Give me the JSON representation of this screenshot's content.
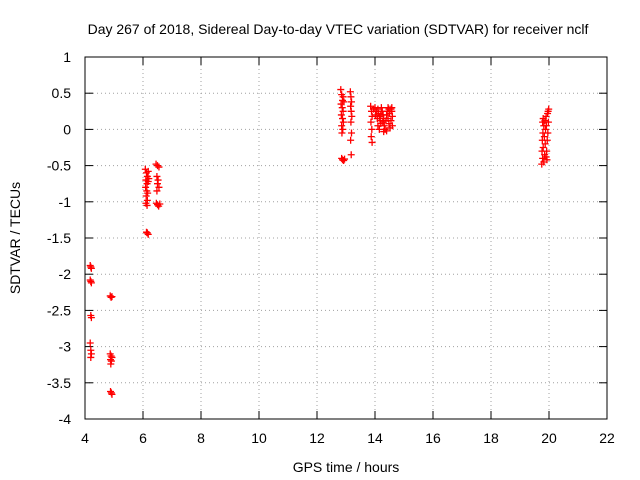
{
  "chart_data": {
    "type": "scatter",
    "title": "Day 267 of 2018, Sidereal Day-to-day VTEC variation (SDTVAR) for receiver nclf",
    "xlabel": "GPS time / hours",
    "ylabel": "SDTVAR / TECUs",
    "xlim": [
      4,
      22
    ],
    "ylim": [
      -4,
      1
    ],
    "xticks": [
      4,
      6,
      8,
      10,
      12,
      14,
      16,
      18,
      20,
      22
    ],
    "yticks": [
      -4,
      -3.5,
      -3,
      -2.5,
      -2,
      -1.5,
      -1,
      -0.5,
      0,
      0.5,
      1
    ],
    "xtick_labels": [
      "4",
      "6",
      "8",
      "10",
      "12",
      "14",
      "16",
      "18",
      "20",
      "22"
    ],
    "ytick_labels": [
      "-4",
      "-3.5",
      "-3",
      "-2.5",
      "-2",
      "-1.5",
      "-1",
      "-0.5",
      "0",
      "0.5",
      "1"
    ],
    "grid": true,
    "grid_style": "dotted",
    "marker": "plus",
    "colors": {
      "series": "#ff0000",
      "axes": "#000000",
      "grid": "#a0a0a0",
      "background": "#ffffff"
    },
    "series": [
      {
        "name": "SDTVAR",
        "points": [
          [
            4.18,
            -1.88
          ],
          [
            4.2,
            -1.9
          ],
          [
            4.22,
            -1.92
          ],
          [
            4.18,
            -2.08
          ],
          [
            4.2,
            -2.1
          ],
          [
            4.22,
            -2.12
          ],
          [
            4.2,
            -2.57
          ],
          [
            4.22,
            -2.6
          ],
          [
            4.18,
            -2.95
          ],
          [
            4.2,
            -3.05
          ],
          [
            4.22,
            -3.1
          ],
          [
            4.2,
            -3.15
          ],
          [
            4.87,
            -2.3
          ],
          [
            4.9,
            -2.32
          ],
          [
            4.93,
            -2.31
          ],
          [
            4.87,
            -3.1
          ],
          [
            4.9,
            -3.13
          ],
          [
            4.93,
            -3.15
          ],
          [
            4.88,
            -3.18
          ],
          [
            4.91,
            -3.2
          ],
          [
            4.89,
            -3.24
          ],
          [
            4.88,
            -3.62
          ],
          [
            4.91,
            -3.64
          ],
          [
            4.93,
            -3.66
          ],
          [
            6.08,
            -0.55
          ],
          [
            6.12,
            -0.6
          ],
          [
            6.15,
            -0.65
          ],
          [
            6.1,
            -0.7
          ],
          [
            6.14,
            -0.75
          ],
          [
            6.18,
            -0.72
          ],
          [
            6.09,
            -0.8
          ],
          [
            6.13,
            -0.85
          ],
          [
            6.16,
            -0.88
          ],
          [
            6.11,
            -0.92
          ],
          [
            6.15,
            -0.98
          ],
          [
            6.1,
            -1.02
          ],
          [
            6.14,
            -1.05
          ],
          [
            6.18,
            -0.58
          ],
          [
            6.2,
            -0.68
          ],
          [
            6.12,
            -1.42
          ],
          [
            6.15,
            -1.43
          ],
          [
            6.18,
            -1.45
          ],
          [
            6.45,
            -0.48
          ],
          [
            6.5,
            -0.5
          ],
          [
            6.55,
            -0.52
          ],
          [
            6.48,
            -0.65
          ],
          [
            6.52,
            -0.7
          ],
          [
            6.5,
            -0.75
          ],
          [
            6.55,
            -0.8
          ],
          [
            6.48,
            -0.85
          ],
          [
            6.46,
            -1.02
          ],
          [
            6.5,
            -1.04
          ],
          [
            6.54,
            -1.06
          ],
          [
            6.58,
            -1.03
          ],
          [
            12.82,
            0.55
          ],
          [
            12.85,
            0.48
          ],
          [
            12.88,
            0.4
          ],
          [
            12.83,
            0.35
          ],
          [
            12.87,
            0.3
          ],
          [
            12.9,
            0.25
          ],
          [
            12.84,
            0.2
          ],
          [
            12.88,
            0.15
          ],
          [
            12.91,
            0.1
          ],
          [
            12.85,
            0.05
          ],
          [
            12.89,
            0.0
          ],
          [
            12.86,
            -0.05
          ],
          [
            12.9,
            0.45
          ],
          [
            12.93,
            0.38
          ],
          [
            12.85,
            -0.4
          ],
          [
            12.88,
            -0.42
          ],
          [
            12.92,
            -0.43
          ],
          [
            12.95,
            -0.41
          ],
          [
            13.15,
            0.52
          ],
          [
            13.17,
            0.45
          ],
          [
            13.19,
            0.38
          ],
          [
            13.16,
            0.32
          ],
          [
            13.18,
            0.25
          ],
          [
            13.2,
            0.18
          ],
          [
            13.17,
            0.1
          ],
          [
            13.19,
            -0.05
          ],
          [
            13.16,
            -0.15
          ],
          [
            13.18,
            -0.35
          ],
          [
            13.85,
            0.32
          ],
          [
            13.88,
            0.25
          ],
          [
            13.9,
            0.18
          ],
          [
            13.86,
            0.1
          ],
          [
            13.89,
            0.0
          ],
          [
            13.87,
            -0.1
          ],
          [
            13.9,
            -0.18
          ],
          [
            13.95,
            0.28
          ],
          [
            14.0,
            0.3
          ],
          [
            14.05,
            0.25
          ],
          [
            14.02,
            0.2
          ],
          [
            14.08,
            0.15
          ],
          [
            14.1,
            0.28
          ],
          [
            14.12,
            0.22
          ],
          [
            14.15,
            0.18
          ],
          [
            14.18,
            0.12
          ],
          [
            14.2,
            0.08
          ],
          [
            14.1,
            0.05
          ],
          [
            14.15,
            0.0
          ],
          [
            14.22,
            0.3
          ],
          [
            14.25,
            0.25
          ],
          [
            14.28,
            0.2
          ],
          [
            14.3,
            0.15
          ],
          [
            14.27,
            0.1
          ],
          [
            14.32,
            0.05
          ],
          [
            14.35,
            0.0
          ],
          [
            14.38,
            0.12
          ],
          [
            14.4,
            0.2
          ],
          [
            14.42,
            0.25
          ],
          [
            14.45,
            0.3
          ],
          [
            14.48,
            0.28
          ],
          [
            14.5,
            0.22
          ],
          [
            14.45,
            0.15
          ],
          [
            14.48,
            0.08
          ],
          [
            14.52,
            0.02
          ],
          [
            14.55,
            0.28
          ],
          [
            14.58,
            0.25
          ],
          [
            14.6,
            0.18
          ],
          [
            14.55,
            0.12
          ],
          [
            14.6,
            0.05
          ],
          [
            14.4,
            -0.02
          ],
          [
            14.3,
            -0.03
          ],
          [
            14.58,
            0.3
          ],
          [
            14.2,
            0.2
          ],
          [
            19.75,
            -0.48
          ],
          [
            19.78,
            -0.4
          ],
          [
            19.76,
            -0.3
          ],
          [
            19.8,
            -0.25
          ],
          [
            19.77,
            -0.15
          ],
          [
            19.79,
            -0.05
          ],
          [
            19.82,
            0.05
          ],
          [
            19.78,
            0.1
          ],
          [
            19.8,
            0.15
          ],
          [
            19.85,
            -0.35
          ],
          [
            19.87,
            -0.2
          ],
          [
            19.84,
            -0.1
          ],
          [
            19.88,
            0.0
          ],
          [
            19.86,
            0.12
          ],
          [
            19.9,
            0.18
          ],
          [
            19.92,
            -0.3
          ],
          [
            19.94,
            -0.15
          ],
          [
            19.91,
            0.05
          ],
          [
            19.95,
            0.22
          ],
          [
            19.97,
            0.25
          ],
          [
            19.99,
            0.28
          ],
          [
            19.93,
            -0.42
          ],
          [
            19.96,
            -0.05
          ],
          [
            19.98,
            0.1
          ],
          [
            19.82,
            -0.45
          ],
          [
            19.9,
            -0.38
          ]
        ]
      }
    ]
  }
}
